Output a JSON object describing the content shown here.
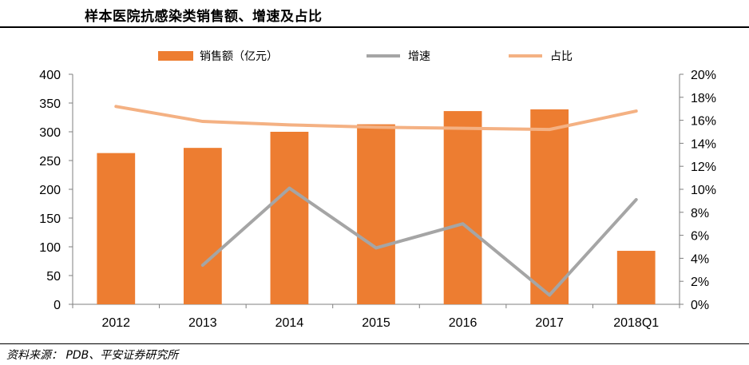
{
  "title": "样本医院抗感染类销售额、增速及占比",
  "source": "资料来源：  PDB、平安证券研究所",
  "colors": {
    "bar": "#ED7D31",
    "growth": "#A5A5A5",
    "share": "#F4B183"
  },
  "chart_data": {
    "type": "bar",
    "categories": [
      "2012",
      "2013",
      "2014",
      "2015",
      "2016",
      "2017",
      "2018Q1"
    ],
    "ylim_left": [
      0,
      400
    ],
    "yticks_left": [
      0,
      50,
      100,
      150,
      200,
      250,
      300,
      350,
      400
    ],
    "ylim_right": [
      0,
      20
    ],
    "yticks_right": [
      "0%",
      "2%",
      "4%",
      "6%",
      "8%",
      "10%",
      "12%",
      "14%",
      "16%",
      "18%",
      "20%"
    ],
    "legend_position": "top",
    "series": [
      {
        "name": "销售额（亿元）",
        "type": "bar",
        "axis": "left",
        "values": [
          263,
          272,
          300,
          313,
          336,
          339,
          93
        ]
      },
      {
        "name": "增速",
        "type": "line",
        "axis": "right",
        "unit": "%",
        "values": [
          null,
          3.4,
          10.1,
          4.9,
          7.0,
          0.8,
          9.1
        ]
      },
      {
        "name": "占比",
        "type": "line",
        "axis": "right",
        "unit": "%",
        "values": [
          17.2,
          15.9,
          15.6,
          15.4,
          15.3,
          15.2,
          16.8
        ]
      }
    ]
  }
}
